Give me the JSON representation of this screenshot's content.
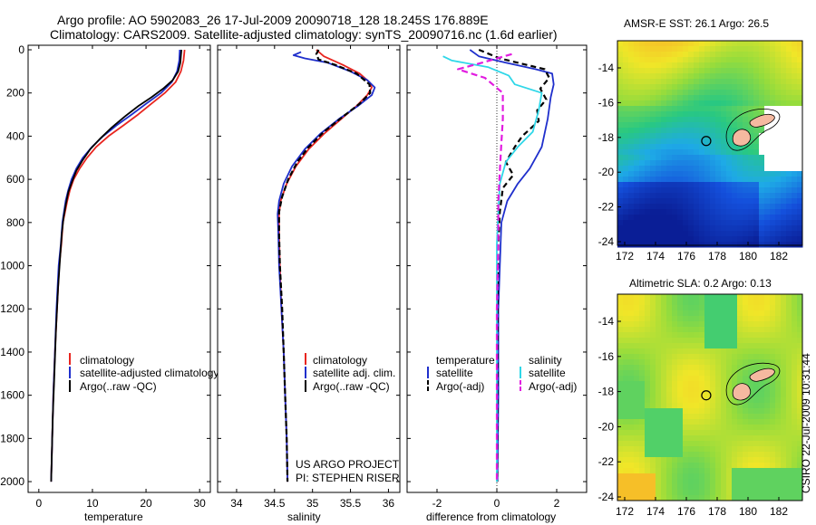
{
  "title": {
    "line1": "Argo profile: AO 5902083_26 17-Jul-2009 20090718_128 18.245S 176.889E",
    "line2": "Climatology: CARS2009. Satellite-adjusted climatology: synTS_20090716.nc (1.6d earlier)"
  },
  "colors": {
    "red": "#e8251f",
    "blue": "#1f2fcc",
    "black": "#000000",
    "cyan": "#2fd7e8",
    "magenta": "#e21ce0",
    "land": "#f5b9a0"
  },
  "depth_axis": {
    "ticks": [
      "0",
      "200",
      "400",
      "600",
      "800",
      "1000",
      "1200",
      "1400",
      "1600",
      "1800",
      "2000"
    ],
    "ylim": [
      0,
      2050
    ],
    "reversed": true
  },
  "chart_data": [
    {
      "type": "line",
      "xlabel": "temperature",
      "xlim": [
        -2,
        32
      ],
      "xticks": [
        "0",
        "10",
        "20",
        "30"
      ],
      "xtick_values": [
        0,
        10,
        20,
        30
      ],
      "legend": [
        "climatology",
        "satellite-adjusted climatology",
        "Argo(..raw -QC)"
      ],
      "series": [
        {
          "name": "climatology",
          "color": "red",
          "dash": "",
          "points": [
            [
              27.2,
              0
            ],
            [
              27.0,
              50
            ],
            [
              26.5,
              100
            ],
            [
              25.5,
              150
            ],
            [
              23.5,
              200
            ],
            [
              21.0,
              250
            ],
            [
              18.5,
              300
            ],
            [
              15.8,
              350
            ],
            [
              13.0,
              400
            ],
            [
              10.7,
              450
            ],
            [
              9.0,
              500
            ],
            [
              7.6,
              550
            ],
            [
              6.5,
              600
            ],
            [
              5.8,
              650
            ],
            [
              5.3,
              700
            ],
            [
              4.9,
              750
            ],
            [
              4.5,
              800
            ],
            [
              4.2,
              900
            ],
            [
              3.8,
              1000
            ],
            [
              3.4,
              1200
            ],
            [
              3.0,
              1400
            ],
            [
              2.7,
              1600
            ],
            [
              2.5,
              1800
            ],
            [
              2.3,
              2000
            ]
          ]
        },
        {
          "name": "satellite-adjusted climatology",
          "color": "blue",
          "dash": "",
          "points": [
            [
              26.3,
              0
            ],
            [
              26.2,
              50
            ],
            [
              25.8,
              100
            ],
            [
              24.8,
              150
            ],
            [
              22.8,
              200
            ],
            [
              20.0,
              250
            ],
            [
              17.3,
              300
            ],
            [
              14.5,
              350
            ],
            [
              12.0,
              400
            ],
            [
              9.9,
              450
            ],
            [
              8.2,
              500
            ],
            [
              7.0,
              550
            ],
            [
              6.1,
              600
            ],
            [
              5.5,
              650
            ],
            [
              5.0,
              700
            ],
            [
              4.7,
              750
            ],
            [
              4.4,
              800
            ],
            [
              4.1,
              900
            ],
            [
              3.7,
              1000
            ],
            [
              3.3,
              1200
            ],
            [
              3.0,
              1400
            ],
            [
              2.7,
              1600
            ],
            [
              2.5,
              1800
            ],
            [
              2.3,
              2000
            ]
          ]
        },
        {
          "name": "Argo(..raw -QC)",
          "color": "black",
          "dash": "",
          "points": [
            [
              26.6,
              0
            ],
            [
              26.5,
              30
            ],
            [
              26.4,
              60
            ],
            [
              26.0,
              100
            ],
            [
              25.0,
              140
            ],
            [
              23.2,
              180
            ],
            [
              21.0,
              220
            ],
            [
              18.6,
              260
            ],
            [
              16.0,
              310
            ],
            [
              13.6,
              360
            ],
            [
              11.5,
              410
            ],
            [
              9.6,
              460
            ],
            [
              8.2,
              510
            ],
            [
              7.0,
              560
            ],
            [
              6.2,
              610
            ],
            [
              5.5,
              660
            ],
            [
              5.0,
              720
            ],
            [
              4.6,
              780
            ],
            [
              4.3,
              850
            ],
            [
              4.0,
              950
            ],
            [
              3.6,
              1100
            ],
            [
              3.2,
              1300
            ],
            [
              2.9,
              1500
            ],
            [
              2.6,
              1700
            ],
            [
              2.4,
              1900
            ],
            [
              2.3,
              2000
            ]
          ]
        }
      ]
    },
    {
      "type": "line",
      "xlabel": "salinity",
      "xlim": [
        33.75,
        36.15
      ],
      "xticks": [
        "34",
        "34.5",
        "35",
        "35.5",
        "36"
      ],
      "xtick_values": [
        34,
        34.5,
        35,
        35.5,
        36
      ],
      "legend": [
        "climatology",
        "satellite adj. clim.",
        "Argo(..raw -QC)"
      ],
      "annotation": [
        "US ARGO PROJECT",
        "PI: STEPHEN RISER"
      ],
      "series": [
        {
          "name": "climatology",
          "color": "red",
          "dash": "",
          "points": [
            [
              35.05,
              0
            ],
            [
              35.15,
              30
            ],
            [
              35.4,
              70
            ],
            [
              35.62,
              110
            ],
            [
              35.75,
              150
            ],
            [
              35.78,
              175
            ],
            [
              35.72,
              210
            ],
            [
              35.58,
              260
            ],
            [
              35.38,
              320
            ],
            [
              35.15,
              390
            ],
            [
              34.95,
              460
            ],
            [
              34.78,
              540
            ],
            [
              34.66,
              620
            ],
            [
              34.58,
              700
            ],
            [
              34.56,
              760
            ],
            [
              34.56,
              850
            ],
            [
              34.57,
              1000
            ],
            [
              34.59,
              1200
            ],
            [
              34.62,
              1400
            ],
            [
              34.64,
              1600
            ],
            [
              34.66,
              1800
            ],
            [
              34.67,
              2000
            ]
          ]
        },
        {
          "name": "satellite adj. clim.",
          "color": "blue",
          "dash": "",
          "points": [
            [
              34.85,
              10
            ],
            [
              34.75,
              25
            ],
            [
              34.9,
              40
            ],
            [
              35.2,
              60
            ],
            [
              35.5,
              100
            ],
            [
              35.72,
              140
            ],
            [
              35.82,
              175
            ],
            [
              35.78,
              210
            ],
            [
              35.6,
              260
            ],
            [
              35.35,
              320
            ],
            [
              35.1,
              390
            ],
            [
              34.9,
              460
            ],
            [
              34.73,
              540
            ],
            [
              34.62,
              620
            ],
            [
              34.56,
              700
            ],
            [
              34.54,
              760
            ],
            [
              34.55,
              850
            ],
            [
              34.56,
              1000
            ],
            [
              34.59,
              1200
            ],
            [
              34.62,
              1400
            ],
            [
              34.64,
              1600
            ],
            [
              34.66,
              1800
            ],
            [
              34.67,
              2000
            ]
          ]
        },
        {
          "name": "Argo(..raw -QC)",
          "color": "black",
          "dash": "6,3",
          "points": [
            [
              35.08,
              0
            ],
            [
              35.05,
              20
            ],
            [
              35.08,
              45
            ],
            [
              35.3,
              70
            ],
            [
              35.58,
              110
            ],
            [
              35.75,
              160
            ],
            [
              35.76,
              200
            ],
            [
              35.62,
              250
            ],
            [
              35.4,
              310
            ],
            [
              35.15,
              380
            ],
            [
              34.95,
              450
            ],
            [
              34.8,
              520
            ],
            [
              34.68,
              600
            ],
            [
              34.6,
              680
            ],
            [
              34.56,
              750
            ],
            [
              34.56,
              850
            ],
            [
              34.57,
              1000
            ],
            [
              34.6,
              1200
            ],
            [
              34.62,
              1400
            ],
            [
              34.64,
              1600
            ],
            [
              34.66,
              1800
            ],
            [
              34.67,
              2000
            ]
          ]
        }
      ]
    },
    {
      "type": "line",
      "xlabel": "difference from climatology",
      "xlim": [
        -3,
        3.0
      ],
      "xticks": [
        "-2",
        "0",
        "2"
      ],
      "xtick_values": [
        -2,
        0,
        2
      ],
      "legend_left_header": "temperature",
      "legend_right_header": "salinity",
      "legend": [
        "satellite",
        "Argo(-adj)",
        "satellite",
        "Argo(-adj)"
      ],
      "series": [
        {
          "name": "satellite",
          "color": "blue",
          "dash": "",
          "points": [
            [
              -0.9,
              0
            ],
            [
              -0.6,
              30
            ],
            [
              0.3,
              60
            ],
            [
              1.3,
              90
            ],
            [
              1.85,
              110
            ],
            [
              1.9,
              160
            ],
            [
              1.8,
              220
            ],
            [
              1.7,
              320
            ],
            [
              1.5,
              450
            ],
            [
              1.1,
              550
            ],
            [
              0.7,
              620
            ],
            [
              0.35,
              700
            ],
            [
              0.15,
              800
            ],
            [
              0.1,
              1000
            ],
            [
              0.05,
              1200
            ],
            [
              0.05,
              1600
            ],
            [
              0.02,
              2000
            ]
          ]
        },
        {
          "name": "Argo(-adj)",
          "color": "black",
          "dash": "6,4",
          "points": [
            [
              -0.6,
              0
            ],
            [
              0.1,
              40
            ],
            [
              1.6,
              90
            ],
            [
              1.75,
              130
            ],
            [
              1.45,
              180
            ],
            [
              1.65,
              230
            ],
            [
              1.35,
              280
            ],
            [
              1.4,
              330
            ],
            [
              0.85,
              400
            ],
            [
              0.6,
              450
            ],
            [
              0.3,
              520
            ],
            [
              0.55,
              580
            ],
            [
              0.2,
              640
            ],
            [
              0.1,
              750
            ],
            [
              0.05,
              900
            ],
            [
              0.02,
              1200
            ],
            [
              0.01,
              2000
            ]
          ]
        },
        {
          "name": "satellite",
          "color": "cyan",
          "dash": "",
          "points": [
            [
              -1.8,
              30
            ],
            [
              -1.5,
              50
            ],
            [
              -0.3,
              80
            ],
            [
              0.4,
              120
            ],
            [
              0.6,
              160
            ],
            [
              1.5,
              200
            ],
            [
              1.4,
              280
            ],
            [
              1.2,
              380
            ],
            [
              0.7,
              450
            ],
            [
              0.3,
              520
            ],
            [
              0.1,
              620
            ],
            [
              0.05,
              750
            ],
            [
              0.0,
              900
            ],
            [
              0.0,
              1200
            ],
            [
              0.0,
              2000
            ]
          ]
        },
        {
          "name": "Argo(-adj)",
          "color": "magenta",
          "dash": "7,4",
          "points": [
            [
              0.5,
              20
            ],
            [
              -0.5,
              60
            ],
            [
              -1.3,
              90
            ],
            [
              -0.4,
              130
            ],
            [
              0.2,
              200
            ],
            [
              0.2,
              320
            ],
            [
              0.15,
              430
            ],
            [
              0.1,
              560
            ],
            [
              0.05,
              700
            ],
            [
              0.05,
              900
            ],
            [
              0.0,
              1200
            ],
            [
              0.0,
              2000
            ]
          ]
        }
      ]
    }
  ],
  "maps": [
    {
      "title": "AMSR-E SST: 26.1 Argo: 26.5",
      "xticks": [
        "172",
        "174",
        "176",
        "178",
        "180",
        "182"
      ],
      "yticks": [
        "-14",
        "-16",
        "-18",
        "-20",
        "-22",
        "-24"
      ],
      "colormap": "sst"
    },
    {
      "title": "Altimetric SLA: 0.2 Argo: 0.13",
      "xticks": [
        "172",
        "174",
        "176",
        "178",
        "180",
        "182"
      ],
      "yticks": [
        "-14",
        "-16",
        "-18",
        "-20",
        "-22",
        "-24"
      ],
      "colormap": "sla"
    }
  ],
  "side_label": "CSIRO 22-Jul-2009 10:31:44"
}
